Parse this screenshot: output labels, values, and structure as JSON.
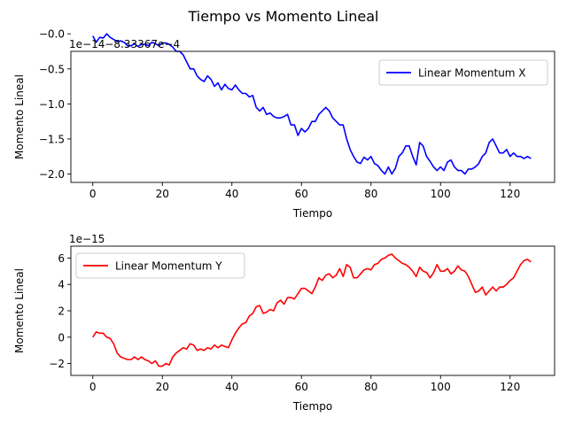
{
  "figure": {
    "suptitle": "Tiempo vs Momento Lineal",
    "colors": {
      "x_series": "#0000ff",
      "y_series": "#ff0000",
      "axes": "#000000",
      "legend_border": "#cccccc"
    }
  },
  "chart_data": [
    {
      "type": "line",
      "title": "",
      "xlabel": "Tiempo",
      "ylabel": "Momento Lineal",
      "offset_text": "1e−14−8.33367e−4",
      "xlim": [
        -6.3,
        132.8
      ],
      "ylim": [
        -2.12,
        -0.25
      ],
      "xticks": [
        0,
        20,
        40,
        60,
        80,
        100,
        120
      ],
      "xtick_labels": [
        "0",
        "20",
        "40",
        "60",
        "80",
        "100",
        "120"
      ],
      "yticks": [
        -2.0,
        -1.5,
        -1.0,
        -0.5,
        -0.0
      ],
      "ytick_labels": [
        "−2.0",
        "−1.5",
        "−1.0",
        "−0.5",
        "−0.0"
      ],
      "legend_position": "top-right",
      "grid": false,
      "series": [
        {
          "name": "Linear Momentum X",
          "color": "#0000ff",
          "x": [
            0,
            1,
            2,
            3,
            4,
            5,
            6,
            7,
            8,
            9,
            10,
            11,
            12,
            13,
            14,
            15,
            16,
            17,
            18,
            19,
            20,
            21,
            22,
            23,
            24,
            25,
            26,
            27,
            28,
            29,
            30,
            31,
            32,
            33,
            34,
            35,
            36,
            37,
            38,
            39,
            40,
            41,
            42,
            43,
            44,
            45,
            46,
            47,
            48,
            49,
            50,
            51,
            52,
            53,
            54,
            55,
            56,
            57,
            58,
            59,
            60,
            61,
            62,
            63,
            64,
            65,
            66,
            67,
            68,
            69,
            70,
            71,
            72,
            73,
            74,
            75,
            76,
            77,
            78,
            79,
            80,
            81,
            82,
            83,
            84,
            85,
            86,
            87,
            88,
            89,
            90,
            91,
            92,
            93,
            94,
            95,
            96,
            97,
            98,
            99,
            100,
            101,
            102,
            103,
            104,
            105,
            106,
            107,
            108,
            109,
            110,
            111,
            112,
            113,
            114,
            115,
            116,
            117,
            118,
            119,
            120,
            121,
            122,
            123,
            124,
            125,
            126
          ],
          "y": [
            -0.03,
            -0.12,
            -0.05,
            -0.06,
            0.0,
            -0.05,
            -0.08,
            -0.11,
            -0.1,
            -0.12,
            -0.17,
            -0.17,
            -0.14,
            -0.18,
            -0.15,
            -0.15,
            -0.17,
            -0.12,
            -0.14,
            -0.17,
            -0.13,
            -0.13,
            -0.15,
            -0.19,
            -0.25,
            -0.25,
            -0.3,
            -0.4,
            -0.5,
            -0.5,
            -0.6,
            -0.65,
            -0.68,
            -0.6,
            -0.65,
            -0.75,
            -0.7,
            -0.8,
            -0.72,
            -0.78,
            -0.8,
            -0.73,
            -0.8,
            -0.85,
            -0.85,
            -0.9,
            -0.88,
            -1.05,
            -1.1,
            -1.05,
            -1.15,
            -1.13,
            -1.18,
            -1.2,
            -1.2,
            -1.18,
            -1.15,
            -1.3,
            -1.3,
            -1.45,
            -1.35,
            -1.4,
            -1.35,
            -1.25,
            -1.25,
            -1.15,
            -1.1,
            -1.05,
            -1.1,
            -1.2,
            -1.25,
            -1.3,
            -1.3,
            -1.5,
            -1.65,
            -1.75,
            -1.83,
            -1.85,
            -1.76,
            -1.8,
            -1.75,
            -1.85,
            -1.88,
            -1.95,
            -2.0,
            -1.9,
            -2.0,
            -1.92,
            -1.75,
            -1.7,
            -1.6,
            -1.6,
            -1.75,
            -1.87,
            -1.55,
            -1.6,
            -1.75,
            -1.82,
            -1.9,
            -1.95,
            -1.9,
            -1.95,
            -1.83,
            -1.8,
            -1.9,
            -1.95,
            -1.95,
            -2.0,
            -1.93,
            -1.93,
            -1.9,
            -1.85,
            -1.75,
            -1.7,
            -1.55,
            -1.5,
            -1.6,
            -1.7,
            -1.7,
            -1.65,
            -1.75,
            -1.7,
            -1.75,
            -1.75,
            -1.78,
            -1.75,
            -1.78
          ]
        }
      ]
    },
    {
      "type": "line",
      "title": "",
      "xlabel": "Tiempo",
      "ylabel": "Momento Lineal",
      "offset_text": "1e−15",
      "xlim": [
        -6.3,
        132.8
      ],
      "ylim": [
        -2.9,
        6.9
      ],
      "xticks": [
        0,
        20,
        40,
        60,
        80,
        100,
        120
      ],
      "xtick_labels": [
        "0",
        "20",
        "40",
        "60",
        "80",
        "100",
        "120"
      ],
      "yticks": [
        -2,
        0,
        2,
        4,
        6
      ],
      "ytick_labels": [
        "−2",
        "0",
        "2",
        "4",
        "6"
      ],
      "legend_position": "top-left",
      "grid": false,
      "series": [
        {
          "name": "Linear Momentum Y",
          "color": "#ff0000",
          "x": [
            0,
            1,
            2,
            3,
            4,
            5,
            6,
            7,
            8,
            9,
            10,
            11,
            12,
            13,
            14,
            15,
            16,
            17,
            18,
            19,
            20,
            21,
            22,
            23,
            24,
            25,
            26,
            27,
            28,
            29,
            30,
            31,
            32,
            33,
            34,
            35,
            36,
            37,
            38,
            39,
            40,
            41,
            42,
            43,
            44,
            45,
            46,
            47,
            48,
            49,
            50,
            51,
            52,
            53,
            54,
            55,
            56,
            57,
            58,
            59,
            60,
            61,
            62,
            63,
            64,
            65,
            66,
            67,
            68,
            69,
            70,
            71,
            72,
            73,
            74,
            75,
            76,
            77,
            78,
            79,
            80,
            81,
            82,
            83,
            84,
            85,
            86,
            87,
            88,
            89,
            90,
            91,
            92,
            93,
            94,
            95,
            96,
            97,
            98,
            99,
            100,
            101,
            102,
            103,
            104,
            105,
            106,
            107,
            108,
            109,
            110,
            111,
            112,
            113,
            114,
            115,
            116,
            117,
            118,
            119,
            120,
            121,
            122,
            123,
            124,
            125,
            126
          ],
          "y": [
            0.0,
            0.4,
            0.3,
            0.3,
            0.0,
            -0.1,
            -0.5,
            -1.2,
            -1.5,
            -1.6,
            -1.7,
            -1.7,
            -1.5,
            -1.7,
            -1.5,
            -1.7,
            -1.8,
            -2.0,
            -1.8,
            -2.2,
            -2.2,
            -2.0,
            -2.1,
            -1.5,
            -1.2,
            -1.0,
            -0.8,
            -0.9,
            -0.5,
            -0.6,
            -1.0,
            -0.9,
            -1.0,
            -0.8,
            -0.9,
            -0.6,
            -0.8,
            -0.6,
            -0.7,
            -0.8,
            -0.2,
            0.3,
            0.7,
            1.0,
            1.1,
            1.6,
            1.8,
            2.3,
            2.4,
            1.8,
            1.9,
            2.1,
            2.0,
            2.6,
            2.8,
            2.5,
            3.0,
            3.0,
            2.9,
            3.3,
            3.7,
            3.7,
            3.5,
            3.3,
            3.8,
            4.5,
            4.3,
            4.7,
            4.8,
            4.5,
            4.7,
            5.2,
            4.6,
            5.5,
            5.3,
            4.5,
            4.5,
            4.8,
            5.1,
            5.2,
            5.1,
            5.5,
            5.6,
            5.9,
            6.0,
            6.2,
            6.3,
            6.0,
            5.8,
            5.6,
            5.5,
            5.3,
            5.0,
            4.6,
            5.3,
            5.0,
            4.9,
            4.5,
            4.9,
            5.5,
            5.0,
            5.0,
            5.2,
            4.8,
            5.0,
            5.4,
            5.1,
            5.0,
            4.6,
            4.0,
            3.4,
            3.5,
            3.8,
            3.2,
            3.5,
            3.8,
            3.5,
            3.8,
            3.8,
            4.0,
            4.3,
            4.5,
            5.0,
            5.5,
            5.8,
            5.9,
            5.7
          ]
        }
      ]
    }
  ]
}
